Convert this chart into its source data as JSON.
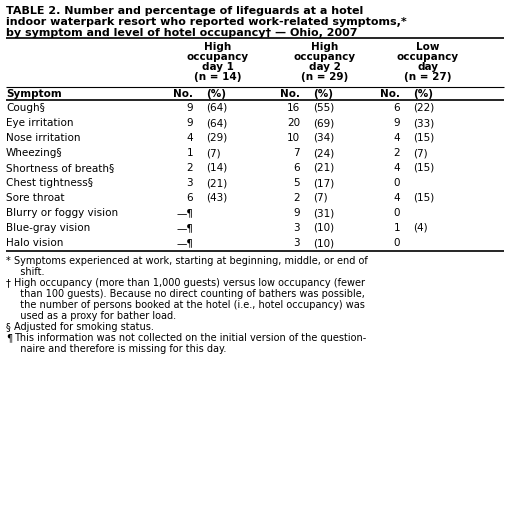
{
  "title_line1": "TABLE 2. Number and percentage of lifeguards at a hotel",
  "title_line2": "indoor waterpark resort who reported work-related symptoms,*",
  "title_line3": "by symptom and level of hotel occupancy† — Ohio, 2007",
  "col_headers_line1": [
    "High",
    "High",
    "Low"
  ],
  "col_headers_line2": [
    "occupancy",
    "occupancy",
    "occupancy"
  ],
  "col_headers_line3": [
    "day 1",
    "day 2",
    "day"
  ],
  "col_headers_line4": [
    "(n = 14)",
    "(n = 29)",
    "(n = 27)"
  ],
  "subheader_label": "Symptom",
  "subheader_no": "No.",
  "subheader_pct": "(%)",
  "symptoms": [
    "Cough§",
    "Eye irritation",
    "Nose irritation",
    "Wheezing§",
    "Shortness of breath§",
    "Chest tightness§",
    "Sore throat",
    "Blurry or foggy vision",
    "Blue-gray vision",
    "Halo vision"
  ],
  "col1_no": [
    "9",
    "9",
    "4",
    "1",
    "2",
    "3",
    "6",
    "—¶",
    "—¶",
    "—¶"
  ],
  "col1_pct": [
    "(64)",
    "(64)",
    "(29)",
    "(7)",
    "(14)",
    "(21)",
    "(43)",
    "",
    "",
    ""
  ],
  "col2_no": [
    "16",
    "20",
    "10",
    "7",
    "6",
    "5",
    "2",
    "9",
    "3",
    "3"
  ],
  "col2_pct": [
    "(55)",
    "(69)",
    "(34)",
    "(24)",
    "(21)",
    "(17)",
    "(7)",
    "(31)",
    "(10)",
    "(10)"
  ],
  "col3_no": [
    "6",
    "9",
    "4",
    "2",
    "4",
    "0",
    "4",
    "0",
    "1",
    "0"
  ],
  "col3_pct": [
    "(22)",
    "(33)",
    "(15)",
    "(7)",
    "(15)",
    "",
    "(15)",
    "",
    "(4)",
    ""
  ],
  "footnotes": [
    [
      "* ",
      "Symptoms experienced at work, starting at beginning, middle, or end of shift."
    ],
    [
      "† ",
      "High occupancy (more than 1,000 guests) versus low occupancy (fewer than 100 guests). Because no direct counting of bathers was possible, the number of persons booked at the hotel (i.e., hotel occupancy) was used as a proxy for bather load."
    ],
    [
      "§ ",
      "Adjusted for smoking status."
    ],
    [
      "¶ ",
      "This information was not collected on the initial version of the questionnaire and therefore is missing for this day."
    ]
  ],
  "bg_color": "#ffffff",
  "border_color": "#000000",
  "title_fontsize": 8.0,
  "header_fontsize": 7.5,
  "body_fontsize": 7.5,
  "footnote_fontsize": 7.0
}
